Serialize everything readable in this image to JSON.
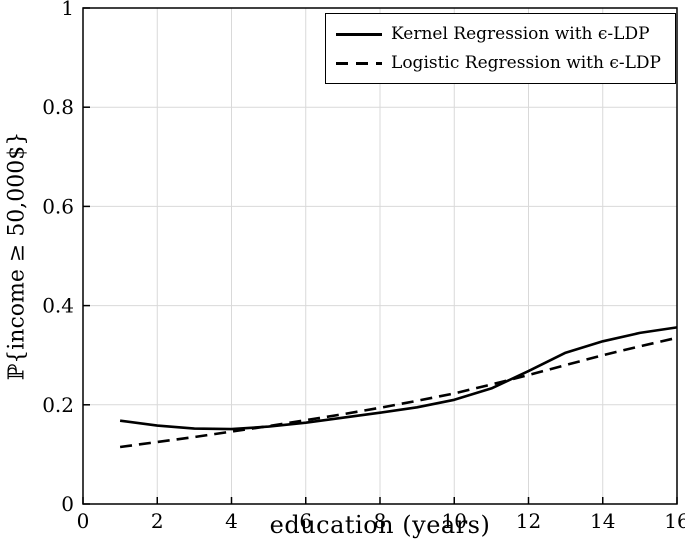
{
  "chart_data": {
    "type": "line",
    "title": "",
    "xlabel": "education (years)",
    "ylabel": "ℙ{income ≥ 50,000$}",
    "xlim": [
      0,
      16
    ],
    "ylim": [
      0,
      1
    ],
    "x_ticks": [
      0,
      2,
      4,
      6,
      8,
      10,
      12,
      14,
      16
    ],
    "y_ticks": [
      0,
      0.2,
      0.4,
      0.6,
      0.8,
      1
    ],
    "grid": true,
    "grid_color": "#d9d9d9",
    "legend_position": "top-right",
    "x": [
      1,
      2,
      3,
      4,
      5,
      6,
      7,
      8,
      9,
      10,
      11,
      12,
      13,
      14,
      15,
      16
    ],
    "series": [
      {
        "name": "Kernel Regression with ϵ-LDP",
        "style": "solid",
        "color": "#000000",
        "values": [
          0.168,
          0.158,
          0.152,
          0.151,
          0.156,
          0.164,
          0.174,
          0.184,
          0.195,
          0.21,
          0.233,
          0.268,
          0.305,
          0.328,
          0.345,
          0.356
        ]
      },
      {
        "name": "Logistic Regression with ϵ-LDP",
        "style": "dashed",
        "color": "#000000",
        "values": [
          0.115,
          0.125,
          0.135,
          0.146,
          0.157,
          0.169,
          0.181,
          0.194,
          0.208,
          0.223,
          0.241,
          0.26,
          0.28,
          0.3,
          0.318,
          0.335
        ]
      }
    ]
  }
}
